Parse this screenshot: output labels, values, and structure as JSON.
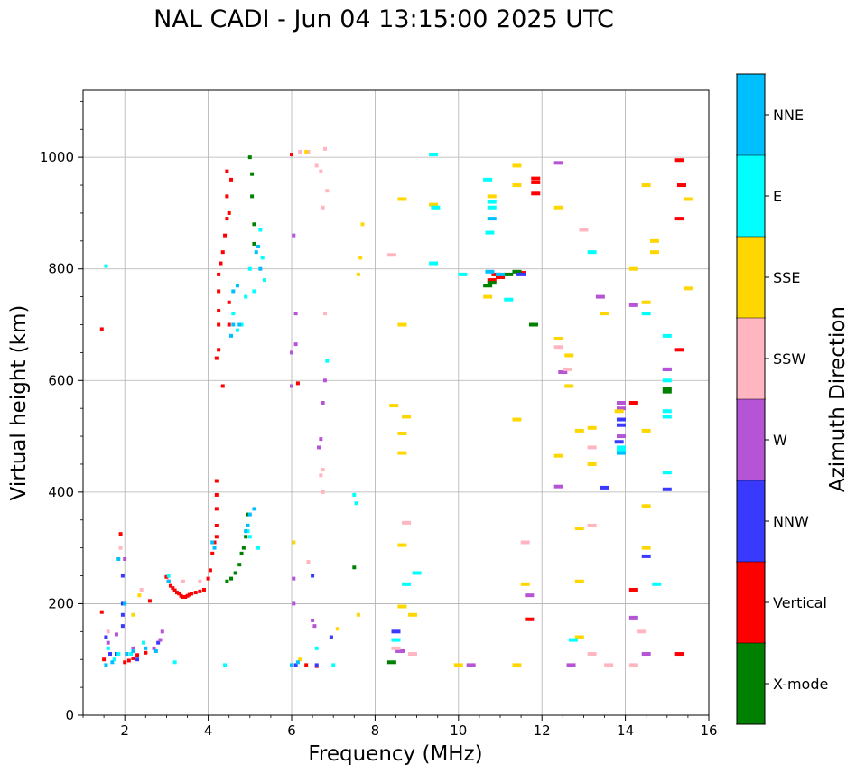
{
  "chart_data": {
    "type": "scatter",
    "title": "NAL CADI - Jun 04 13:15:00 2025 UTC",
    "xlabel": "Frequency (MHz)",
    "ylabel": "Virtual height (km)",
    "xlim": [
      1,
      16
    ],
    "ylim": [
      0,
      1120
    ],
    "xticks": [
      2,
      4,
      6,
      8,
      10,
      12,
      14,
      16
    ],
    "yticks": [
      0,
      200,
      400,
      600,
      800,
      1000
    ],
    "grid": true,
    "colorbar": {
      "label": "Azimuth Direction",
      "categories": [
        {
          "name": "X-mode",
          "color": "#008000"
        },
        {
          "name": "Vertical",
          "color": "#ff0000"
        },
        {
          "name": "NNW",
          "color": "#3a3aff"
        },
        {
          "name": "W",
          "color": "#b555d6"
        },
        {
          "name": "SSW",
          "color": "#ffb6c1"
        },
        {
          "name": "SSE",
          "color": "#ffd700"
        },
        {
          "name": "E",
          "color": "#00ffff"
        },
        {
          "name": "NNE",
          "color": "#00bfff"
        }
      ]
    },
    "series": [
      {
        "name": "Vertical",
        "points": [
          [
            1.45,
            692
          ],
          [
            1.45,
            185
          ],
          [
            1.5,
            100
          ],
          [
            1.9,
            325
          ],
          [
            2.0,
            95
          ],
          [
            2.1,
            98
          ],
          [
            2.2,
            102
          ],
          [
            2.3,
            108
          ],
          [
            2.5,
            112
          ],
          [
            2.6,
            205
          ],
          [
            3.0,
            248
          ],
          [
            3.05,
            240
          ],
          [
            3.1,
            232
          ],
          [
            3.15,
            228
          ],
          [
            3.2,
            224
          ],
          [
            3.25,
            220
          ],
          [
            3.3,
            218
          ],
          [
            3.35,
            214
          ],
          [
            3.4,
            212
          ],
          [
            3.45,
            212
          ],
          [
            3.5,
            214
          ],
          [
            3.55,
            216
          ],
          [
            3.6,
            218
          ],
          [
            3.7,
            220
          ],
          [
            3.8,
            222
          ],
          [
            3.9,
            225
          ],
          [
            4.0,
            245
          ],
          [
            4.05,
            260
          ],
          [
            4.1,
            290
          ],
          [
            4.15,
            310
          ],
          [
            4.2,
            320
          ],
          [
            4.2,
            340
          ],
          [
            4.2,
            370
          ],
          [
            4.2,
            395
          ],
          [
            4.2,
            420
          ],
          [
            4.2,
            640
          ],
          [
            4.25,
            655
          ],
          [
            4.25,
            700
          ],
          [
            4.25,
            725
          ],
          [
            4.25,
            760
          ],
          [
            4.25,
            790
          ],
          [
            4.3,
            810
          ],
          [
            4.35,
            590
          ],
          [
            4.35,
            830
          ],
          [
            4.4,
            860
          ],
          [
            4.45,
            890
          ],
          [
            4.45,
            930
          ],
          [
            4.45,
            975
          ],
          [
            4.55,
            960
          ],
          [
            4.5,
            900
          ],
          [
            4.5,
            740
          ],
          [
            4.5,
            700
          ],
          [
            6.0,
            1005
          ],
          [
            6.15,
            595
          ],
          [
            6.35,
            90
          ],
          [
            6.6,
            88
          ],
          [
            10.8,
            780
          ],
          [
            10.9,
            790
          ],
          [
            11.0,
            785
          ],
          [
            11.5,
            793
          ],
          [
            11.85,
            955
          ],
          [
            11.85,
            935
          ],
          [
            11.85,
            962
          ],
          [
            11.7,
            172
          ],
          [
            14.2,
            225
          ],
          [
            14.2,
            560
          ],
          [
            15.35,
            950
          ],
          [
            15.3,
            890
          ],
          [
            15.3,
            655
          ],
          [
            15.3,
            110
          ],
          [
            15.3,
            995
          ]
        ]
      },
      {
        "name": "X-mode",
        "points": [
          [
            4.45,
            240
          ],
          [
            4.55,
            245
          ],
          [
            4.65,
            255
          ],
          [
            4.75,
            270
          ],
          [
            4.8,
            290
          ],
          [
            4.85,
            300
          ],
          [
            4.9,
            320
          ],
          [
            4.95,
            340
          ],
          [
            4.95,
            360
          ],
          [
            5.0,
            1000
          ],
          [
            5.05,
            970
          ],
          [
            5.05,
            930
          ],
          [
            5.1,
            880
          ],
          [
            5.1,
            845
          ],
          [
            8.4,
            95
          ],
          [
            10.7,
            770
          ],
          [
            10.8,
            775
          ],
          [
            11.2,
            790
          ],
          [
            11.4,
            795
          ],
          [
            11.8,
            700
          ],
          [
            7.5,
            265
          ],
          [
            15.0,
            580
          ],
          [
            15.0,
            585
          ]
        ]
      },
      {
        "name": "NNW",
        "points": [
          [
            1.55,
            140
          ],
          [
            1.65,
            110
          ],
          [
            1.8,
            110
          ],
          [
            1.95,
            250
          ],
          [
            1.95,
            200
          ],
          [
            1.95,
            180
          ],
          [
            1.95,
            160
          ],
          [
            2.3,
            100
          ],
          [
            2.8,
            130
          ],
          [
            6.1,
            90
          ],
          [
            6.5,
            250
          ],
          [
            6.6,
            90
          ],
          [
            6.95,
            140
          ],
          [
            8.5,
            150
          ],
          [
            11.5,
            790
          ],
          [
            13.5,
            408
          ],
          [
            13.85,
            490
          ],
          [
            13.9,
            520
          ],
          [
            13.9,
            530
          ],
          [
            14.5,
            285
          ],
          [
            15.0,
            405
          ],
          [
            15.0,
            620
          ]
        ]
      },
      {
        "name": "W",
        "points": [
          [
            1.6,
            130
          ],
          [
            1.8,
            145
          ],
          [
            2.0,
            280
          ],
          [
            2.2,
            120
          ],
          [
            2.7,
            120
          ],
          [
            2.85,
            135
          ],
          [
            2.9,
            150
          ],
          [
            6.0,
            650
          ],
          [
            6.0,
            590
          ],
          [
            6.05,
            245
          ],
          [
            6.05,
            200
          ],
          [
            6.05,
            860
          ],
          [
            6.1,
            720
          ],
          [
            6.1,
            665
          ],
          [
            6.5,
            170
          ],
          [
            6.55,
            160
          ],
          [
            6.65,
            480
          ],
          [
            6.7,
            495
          ],
          [
            6.75,
            560
          ],
          [
            6.8,
            600
          ],
          [
            8.6,
            115
          ],
          [
            10.3,
            90
          ],
          [
            11.7,
            215
          ],
          [
            12.4,
            410
          ],
          [
            12.5,
            615
          ],
          [
            12.7,
            90
          ],
          [
            13.4,
            750
          ],
          [
            13.9,
            560
          ],
          [
            13.9,
            550
          ],
          [
            13.9,
            500
          ],
          [
            14.2,
            735
          ],
          [
            14.2,
            175
          ],
          [
            14.5,
            110
          ],
          [
            15.0,
            620
          ],
          [
            12.4,
            990
          ]
        ]
      },
      {
        "name": "SSW",
        "points": [
          [
            1.6,
            150
          ],
          [
            1.9,
            300
          ],
          [
            2.4,
            225
          ],
          [
            3.4,
            240
          ],
          [
            3.8,
            240
          ],
          [
            6.2,
            1010
          ],
          [
            6.4,
            1010
          ],
          [
            6.6,
            985
          ],
          [
            6.7,
            975
          ],
          [
            6.75,
            910
          ],
          [
            6.75,
            440
          ],
          [
            6.7,
            430
          ],
          [
            6.75,
            400
          ],
          [
            6.8,
            1015
          ],
          [
            6.85,
            940
          ],
          [
            6.8,
            720
          ],
          [
            6.4,
            275
          ],
          [
            8.4,
            825
          ],
          [
            8.5,
            120
          ],
          [
            8.75,
            345
          ],
          [
            8.9,
            110
          ],
          [
            11.6,
            310
          ],
          [
            12.4,
            660
          ],
          [
            12.6,
            620
          ],
          [
            13.0,
            870
          ],
          [
            13.2,
            480
          ],
          [
            13.2,
            340
          ],
          [
            13.2,
            110
          ],
          [
            13.6,
            90
          ],
          [
            14.2,
            90
          ],
          [
            14.4,
            150
          ]
        ]
      },
      {
        "name": "SSE",
        "points": [
          [
            2.2,
            180
          ],
          [
            2.35,
            215
          ],
          [
            6.05,
            310
          ],
          [
            6.2,
            100
          ],
          [
            6.35,
            1010
          ],
          [
            7.1,
            155
          ],
          [
            7.6,
            180
          ],
          [
            7.65,
            820
          ],
          [
            7.7,
            880
          ],
          [
            7.6,
            790
          ],
          [
            8.45,
            555
          ],
          [
            8.65,
            505
          ],
          [
            8.65,
            470
          ],
          [
            8.65,
            305
          ],
          [
            8.65,
            195
          ],
          [
            8.65,
            700
          ],
          [
            8.65,
            925
          ],
          [
            8.75,
            535
          ],
          [
            8.9,
            180
          ],
          [
            9.4,
            915
          ],
          [
            10.0,
            90
          ],
          [
            10.7,
            750
          ],
          [
            10.8,
            930
          ],
          [
            11.4,
            985
          ],
          [
            11.4,
            950
          ],
          [
            11.4,
            530
          ],
          [
            11.4,
            90
          ],
          [
            11.6,
            235
          ],
          [
            12.4,
            910
          ],
          [
            12.4,
            675
          ],
          [
            12.4,
            465
          ],
          [
            12.65,
            645
          ],
          [
            12.65,
            590
          ],
          [
            12.9,
            510
          ],
          [
            12.9,
            335
          ],
          [
            12.9,
            240
          ],
          [
            12.9,
            140
          ],
          [
            13.2,
            515
          ],
          [
            13.2,
            450
          ],
          [
            13.5,
            720
          ],
          [
            13.85,
            545
          ],
          [
            14.5,
            950
          ],
          [
            14.5,
            740
          ],
          [
            14.5,
            510
          ],
          [
            14.5,
            375
          ],
          [
            14.5,
            300
          ],
          [
            14.7,
            850
          ],
          [
            14.7,
            830
          ],
          [
            15.5,
            925
          ],
          [
            15.5,
            765
          ],
          [
            14.2,
            800
          ]
        ]
      },
      {
        "name": "E",
        "points": [
          [
            1.55,
            805
          ],
          [
            1.6,
            120
          ],
          [
            1.75,
            100
          ],
          [
            1.85,
            110
          ],
          [
            2.15,
            110
          ],
          [
            2.45,
            130
          ],
          [
            3.05,
            250
          ],
          [
            3.2,
            95
          ],
          [
            4.4,
            90
          ],
          [
            4.6,
            720
          ],
          [
            4.7,
            690
          ],
          [
            4.8,
            700
          ],
          [
            4.9,
            750
          ],
          [
            5.0,
            800
          ],
          [
            5.1,
            760
          ],
          [
            5.2,
            300
          ],
          [
            5.25,
            870
          ],
          [
            5.3,
            820
          ],
          [
            5.35,
            780
          ],
          [
            5.0,
            320
          ],
          [
            4.95,
            330
          ],
          [
            6.6,
            120
          ],
          [
            6.85,
            635
          ],
          [
            7.0,
            90
          ],
          [
            7.5,
            395
          ],
          [
            7.55,
            380
          ],
          [
            8.5,
            135
          ],
          [
            8.75,
            235
          ],
          [
            9.0,
            255
          ],
          [
            9.4,
            1005
          ],
          [
            9.4,
            810
          ],
          [
            9.45,
            910
          ],
          [
            10.1,
            790
          ],
          [
            10.7,
            960
          ],
          [
            10.75,
            865
          ],
          [
            10.8,
            910
          ],
          [
            11.2,
            745
          ],
          [
            12.75,
            135
          ],
          [
            13.2,
            830
          ],
          [
            13.9,
            475
          ],
          [
            13.9,
            480
          ],
          [
            14.5,
            720
          ],
          [
            14.75,
            235
          ],
          [
            15.0,
            680
          ],
          [
            15.0,
            600
          ],
          [
            15.0,
            545
          ],
          [
            15.0,
            535
          ],
          [
            15.0,
            435
          ],
          [
            10.8,
            920
          ]
        ]
      },
      {
        "name": "NNE",
        "points": [
          [
            1.55,
            90
          ],
          [
            1.7,
            95
          ],
          [
            1.85,
            280
          ],
          [
            2.0,
            200
          ],
          [
            2.05,
            110
          ],
          [
            2.2,
            115
          ],
          [
            2.5,
            120
          ],
          [
            2.75,
            115
          ],
          [
            3.05,
            240
          ],
          [
            4.1,
            310
          ],
          [
            4.15,
            300
          ],
          [
            4.55,
            680
          ],
          [
            4.6,
            700
          ],
          [
            4.6,
            760
          ],
          [
            4.7,
            770
          ],
          [
            4.75,
            700
          ],
          [
            4.9,
            330
          ],
          [
            4.95,
            340
          ],
          [
            5.0,
            360
          ],
          [
            5.1,
            370
          ],
          [
            5.15,
            830
          ],
          [
            5.2,
            840
          ],
          [
            5.25,
            800
          ],
          [
            6.0,
            90
          ],
          [
            6.15,
            95
          ],
          [
            10.75,
            795
          ],
          [
            10.8,
            890
          ],
          [
            11.0,
            790
          ],
          [
            13.9,
            470
          ]
        ]
      }
    ]
  }
}
